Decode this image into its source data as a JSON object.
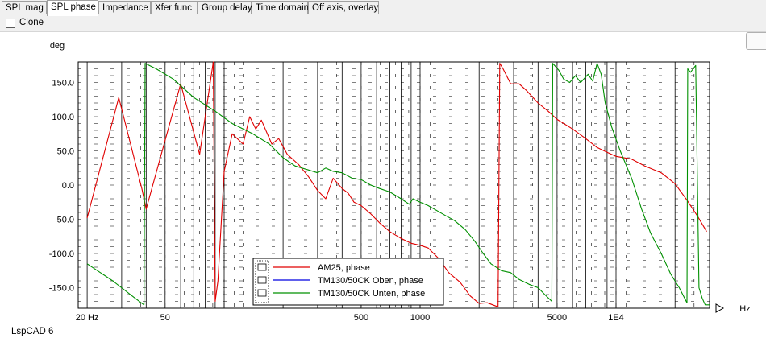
{
  "tabs": [
    {
      "label": "SPL mag",
      "active": false
    },
    {
      "label": "SPL phase",
      "active": true
    },
    {
      "label": "Impedance",
      "active": false
    },
    {
      "label": "Xfer func",
      "active": false
    },
    {
      "label": "Group delay",
      "active": false
    },
    {
      "label": "Time domain",
      "active": false
    },
    {
      "label": "Off axis, overlay",
      "active": false
    }
  ],
  "clone": {
    "label": "Clone",
    "checked": false
  },
  "footer": {
    "app_name": "LspCAD 6"
  },
  "colors": {
    "am25": "#e00000",
    "oben": "#0000e0",
    "unten": "#009000",
    "grid": "#000000"
  },
  "chart_data": {
    "type": "line",
    "title": "",
    "xlabel": "Hz",
    "ylabel": "deg",
    "x_scale": "log",
    "xlim": [
      18,
      30000
    ],
    "ylim": [
      -180,
      180
    ],
    "x_tick_labels": [
      "20 Hz",
      "50",
      "500",
      "1000",
      "5000",
      "1E4"
    ],
    "x_tick_values": [
      20,
      50,
      500,
      1000,
      5000,
      10000
    ],
    "y_tick_labels": [
      "150.0",
      "100.0",
      "50.0",
      "0.0",
      "-50.0",
      "-100.0",
      "-150.0"
    ],
    "y_tick_values": [
      150,
      100,
      50,
      0,
      -50,
      -100,
      -150
    ],
    "grid": true,
    "legend_position": "bottom-center",
    "series": [
      {
        "name": "AM25, phase",
        "color": "#e00000",
        "points": [
          [
            20,
            -48
          ],
          [
            29,
            128
          ],
          [
            38,
            -5
          ],
          [
            40,
            -35
          ],
          [
            60,
            148
          ],
          [
            75,
            45
          ],
          [
            88,
            180
          ],
          [
            90,
            -170
          ],
          [
            93,
            -140
          ],
          [
            100,
            20
          ],
          [
            110,
            75
          ],
          [
            125,
            60
          ],
          [
            135,
            100
          ],
          [
            145,
            82
          ],
          [
            155,
            95
          ],
          [
            175,
            60
          ],
          [
            190,
            68
          ],
          [
            210,
            45
          ],
          [
            240,
            30
          ],
          [
            270,
            12
          ],
          [
            300,
            -8
          ],
          [
            330,
            -20
          ],
          [
            360,
            10
          ],
          [
            400,
            -5
          ],
          [
            430,
            -12
          ],
          [
            460,
            -25
          ],
          [
            500,
            -30
          ],
          [
            560,
            -42
          ],
          [
            620,
            -55
          ],
          [
            700,
            -68
          ],
          [
            800,
            -78
          ],
          [
            900,
            -85
          ],
          [
            1000,
            -88
          ],
          [
            1100,
            -92
          ],
          [
            1250,
            -108
          ],
          [
            1400,
            -128
          ],
          [
            1600,
            -142
          ],
          [
            1800,
            -162
          ],
          [
            2000,
            -173
          ],
          [
            2200,
            -172
          ],
          [
            2500,
            -178
          ],
          [
            2550,
            178
          ],
          [
            2650,
            170
          ],
          [
            2900,
            148
          ],
          [
            3200,
            148
          ],
          [
            3500,
            138
          ],
          [
            4000,
            120
          ],
          [
            4500,
            108
          ],
          [
            5000,
            96
          ],
          [
            6000,
            82
          ],
          [
            7000,
            68
          ],
          [
            8000,
            55
          ],
          [
            9000,
            48
          ],
          [
            10000,
            42
          ],
          [
            12000,
            38
          ],
          [
            14000,
            28
          ],
          [
            17000,
            18
          ],
          [
            20000,
            2
          ],
          [
            23000,
            -22
          ],
          [
            26000,
            -45
          ],
          [
            29000,
            -68
          ]
        ]
      },
      {
        "name": "TM130/50CK Oben, phase",
        "color": "#0000e0",
        "points": []
      },
      {
        "name": "TM130/50CK Unten, phase",
        "color": "#009000",
        "points": [
          [
            20,
            -115
          ],
          [
            27,
            -140
          ],
          [
            35,
            -165
          ],
          [
            39,
            -175
          ],
          [
            39.5,
            178
          ],
          [
            45,
            170
          ],
          [
            55,
            155
          ],
          [
            70,
            128
          ],
          [
            90,
            108
          ],
          [
            110,
            90
          ],
          [
            140,
            75
          ],
          [
            170,
            60
          ],
          [
            200,
            40
          ],
          [
            230,
            28
          ],
          [
            270,
            22
          ],
          [
            300,
            18
          ],
          [
            330,
            25
          ],
          [
            360,
            20
          ],
          [
            400,
            18
          ],
          [
            450,
            10
          ],
          [
            500,
            8
          ],
          [
            560,
            0
          ],
          [
            620,
            -5
          ],
          [
            700,
            -10
          ],
          [
            800,
            -20
          ],
          [
            880,
            -28
          ],
          [
            920,
            -20
          ],
          [
            1000,
            -25
          ],
          [
            1100,
            -30
          ],
          [
            1300,
            -42
          ],
          [
            1500,
            -52
          ],
          [
            1700,
            -65
          ],
          [
            1900,
            -82
          ],
          [
            2100,
            -100
          ],
          [
            2300,
            -115
          ],
          [
            2600,
            -125
          ],
          [
            2900,
            -128
          ],
          [
            3200,
            -138
          ],
          [
            3600,
            -145
          ],
          [
            4000,
            -150
          ],
          [
            4400,
            -162
          ],
          [
            4700,
            -170
          ],
          [
            4750,
            178
          ],
          [
            5100,
            168
          ],
          [
            5400,
            155
          ],
          [
            5800,
            150
          ],
          [
            6200,
            160
          ],
          [
            6600,
            150
          ],
          [
            7200,
            162
          ],
          [
            7600,
            152
          ],
          [
            8000,
            178
          ],
          [
            8400,
            162
          ],
          [
            8800,
            120
          ],
          [
            9500,
            85
          ],
          [
            10500,
            50
          ],
          [
            12000,
            10
          ],
          [
            13500,
            -35
          ],
          [
            15000,
            -70
          ],
          [
            17000,
            -100
          ],
          [
            19000,
            -130
          ],
          [
            21000,
            -150
          ],
          [
            23000,
            -172
          ],
          [
            23200,
            170
          ],
          [
            24000,
            165
          ],
          [
            25500,
            175
          ],
          [
            26500,
            -150
          ],
          [
            27500,
            -165
          ],
          [
            28500,
            -175
          ],
          [
            30000,
            -175
          ]
        ]
      }
    ]
  }
}
